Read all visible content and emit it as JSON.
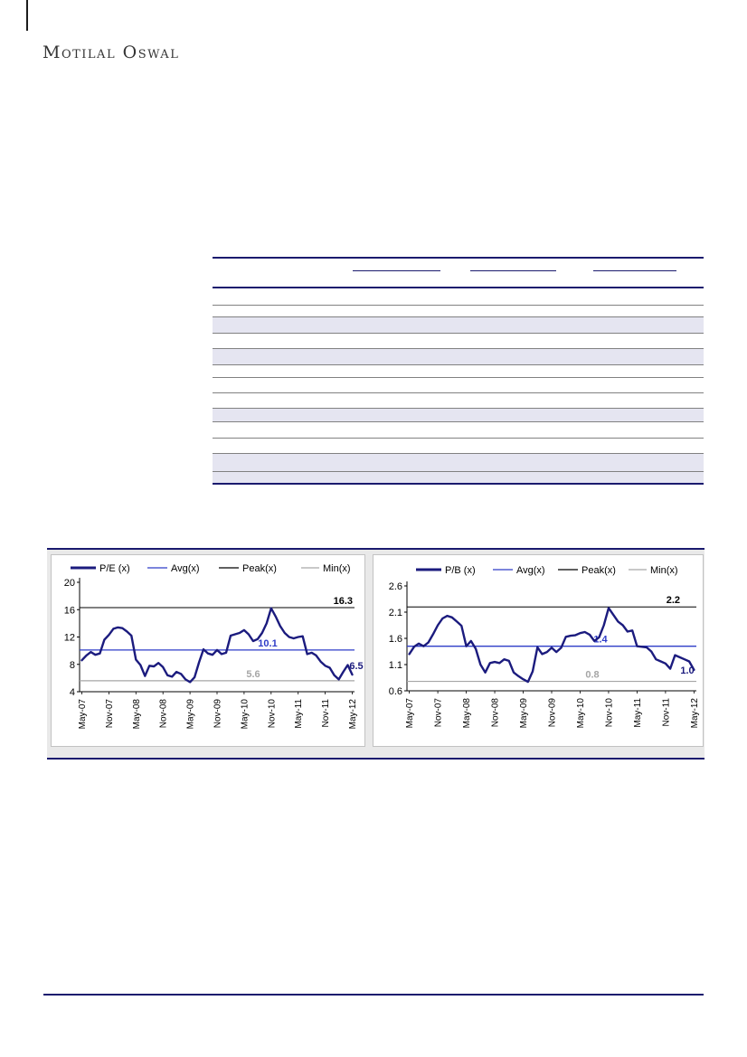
{
  "page": {
    "logo_text": "Motilal Oswal"
  },
  "colors": {
    "navy": "#1b1b7e",
    "avg_blue": "#2e3cc8",
    "peak_black": "#000000",
    "min_gray": "#a6a6a6",
    "rule_navy": "#1a1a6e",
    "row_shade": "#e5e5f1",
    "row_line": "#818181"
  },
  "table": {
    "note": "empty table skeleton, no visible text",
    "column_group_count": 3,
    "row_shading": [
      "plain",
      "plain",
      "shaded",
      "plain",
      "shaded",
      "plain",
      "plain",
      "plain",
      "shaded",
      "plain",
      "plain",
      "shaded",
      "shaded"
    ]
  },
  "chart_data": [
    {
      "type": "line",
      "title": "",
      "legend": [
        "P/E (x)",
        "Avg(x)",
        "Peak(x)",
        "Min(x)"
      ],
      "x_tick_labels": [
        "May-07",
        "Nov-07",
        "May-08",
        "Nov-08",
        "May-09",
        "Nov-09",
        "May-10",
        "Nov-10",
        "May-11",
        "Nov-11",
        "May-12"
      ],
      "label_every_n_points": 6,
      "points": 61,
      "ylim": [
        4,
        20
      ],
      "yticks": [
        {
          "v": 20,
          "label": "20"
        },
        {
          "v": 16,
          "label": "16"
        },
        {
          "v": 12,
          "label": "12"
        },
        {
          "v": 8,
          "label": "8"
        },
        {
          "v": 4,
          "label": "4"
        }
      ],
      "series": [
        {
          "name": "P/E (x)",
          "values": [
            8.6,
            9.3,
            9.8,
            9.4,
            9.6,
            11.6,
            12.3,
            13.2,
            13.4,
            13.3,
            12.8,
            12.2,
            8.7,
            7.9,
            6.3,
            7.8,
            7.7,
            8.2,
            7.6,
            6.4,
            6.2,
            6.9,
            6.6,
            5.8,
            5.4,
            6.1,
            8.3,
            10.2,
            9.6,
            9.4,
            10.1,
            9.5,
            9.7,
            12.2,
            12.4,
            12.6,
            13.0,
            12.4,
            11.4,
            11.7,
            12.6,
            14.0,
            16.2,
            15.0,
            13.6,
            12.6,
            12.0,
            11.8,
            12.0,
            12.1,
            9.5,
            9.7,
            9.3,
            8.4,
            7.8,
            7.5,
            6.4,
            5.8,
            6.9,
            7.9,
            6.5
          ]
        }
      ],
      "ref_lines": [
        {
          "name": "Peak(x)",
          "value": 16.3,
          "label": "16.3",
          "color": "#000000"
        },
        {
          "name": "Avg(x)",
          "value": 10.1,
          "label": "10.1",
          "color": "#2e3cc8"
        },
        {
          "name": "Min(x)",
          "value": 5.6,
          "label": "5.6",
          "color": "#a6a6a6"
        }
      ],
      "last_value_label": "6.5",
      "grid": false,
      "legend_position": "top"
    },
    {
      "type": "line",
      "title": "",
      "legend": [
        "P/B (x)",
        "Avg(x)",
        "Peak(x)",
        "Min(x)"
      ],
      "x_tick_labels": [
        "May-07",
        "Nov-07",
        "May-08",
        "Nov-08",
        "May-09",
        "Nov-09",
        "May-10",
        "Nov-10",
        "May-11",
        "Nov-11",
        "May-12"
      ],
      "label_every_n_points": 6,
      "points": 61,
      "ylim": [
        0.6,
        2.6
      ],
      "yticks": [
        {
          "v": 2.6,
          "label": "2.6"
        },
        {
          "v": 2.1,
          "label": "2.1"
        },
        {
          "v": 1.6,
          "label": "1.6"
        },
        {
          "v": 1.1,
          "label": "1.1"
        },
        {
          "v": 0.6,
          "label": "0.6"
        }
      ],
      "series": [
        {
          "name": "P/B (x)",
          "values": [
            1.3,
            1.44,
            1.5,
            1.45,
            1.52,
            1.68,
            1.85,
            1.98,
            2.03,
            2.0,
            1.92,
            1.84,
            1.45,
            1.55,
            1.4,
            1.1,
            0.95,
            1.13,
            1.15,
            1.13,
            1.2,
            1.17,
            0.95,
            0.88,
            0.82,
            0.77,
            0.97,
            1.43,
            1.3,
            1.34,
            1.42,
            1.34,
            1.42,
            1.63,
            1.65,
            1.66,
            1.7,
            1.72,
            1.67,
            1.55,
            1.62,
            1.85,
            2.18,
            2.05,
            1.92,
            1.85,
            1.73,
            1.75,
            1.45,
            1.44,
            1.43,
            1.35,
            1.2,
            1.16,
            1.12,
            1.02,
            1.28,
            1.24,
            1.2,
            1.16,
            1.0
          ]
        }
      ],
      "ref_lines": [
        {
          "name": "Peak(x)",
          "value": 2.2,
          "label": "2.2",
          "color": "#000000"
        },
        {
          "name": "Avg(x)",
          "value": 1.45,
          "label": "1.4",
          "color": "#2e3cc8"
        },
        {
          "name": "Min(x)",
          "value": 0.78,
          "label": "0.8",
          "color": "#a6a6a6"
        }
      ],
      "last_value_label": "1.0",
      "grid": false,
      "legend_position": "top"
    }
  ]
}
